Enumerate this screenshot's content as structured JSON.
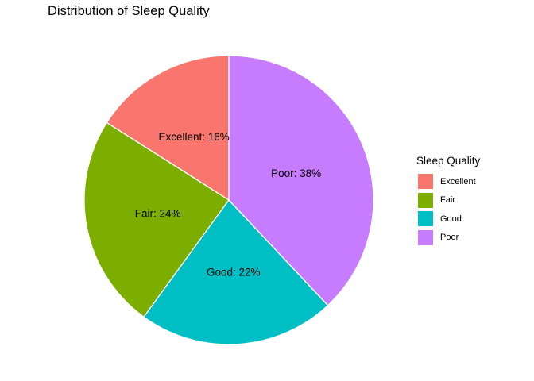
{
  "chart_data": {
    "type": "pie",
    "title": "Distribution of Sleep Quality",
    "legend_title": "Sleep Quality",
    "legend_position": "right",
    "categories": [
      "Excellent",
      "Fair",
      "Good",
      "Poor"
    ],
    "values": [
      16,
      24,
      22,
      38
    ],
    "labels": [
      "Excellent: 16%",
      "Fair: 24%",
      "Good: 22%",
      "Poor: 38%"
    ],
    "colors": [
      "#F8766D",
      "#7CAE00",
      "#00BFC4",
      "#C77CFF"
    ]
  }
}
